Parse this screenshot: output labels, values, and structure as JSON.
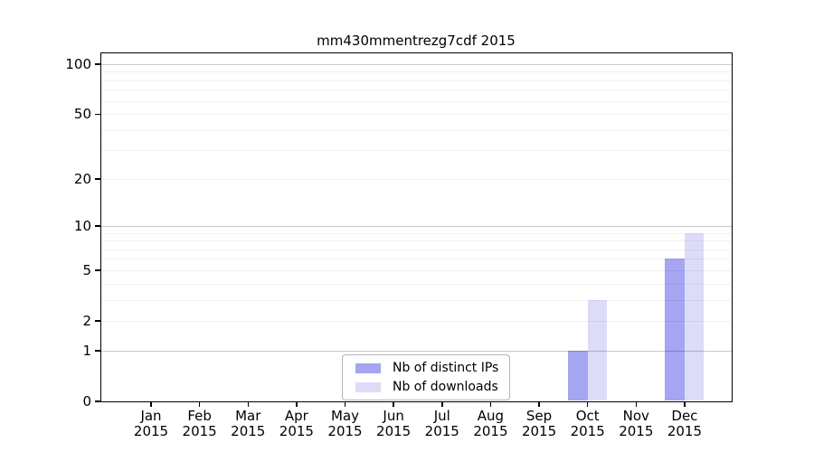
{
  "chart_data": {
    "type": "bar",
    "title": "mm430mmentrezg7cdf 2015",
    "year_label": "2015",
    "categories": [
      "Jan 2015",
      "Feb 2015",
      "Mar 2015",
      "Apr 2015",
      "May 2015",
      "Jun 2015",
      "Jul 2015",
      "Aug 2015",
      "Sep 2015",
      "Oct 2015",
      "Nov 2015",
      "Dec 2015"
    ],
    "months": [
      "Jan",
      "Feb",
      "Mar",
      "Apr",
      "May",
      "Jun",
      "Jul",
      "Aug",
      "Sep",
      "Oct",
      "Nov",
      "Dec"
    ],
    "series": [
      {
        "name": "Nb of distinct IPs",
        "color": "#a5a5f1",
        "values": [
          0,
          0,
          0,
          0,
          0,
          0,
          0,
          0,
          0,
          1,
          0,
          6
        ]
      },
      {
        "name": "Nb of downloads",
        "color": "#dcdcf9",
        "values": [
          0,
          0,
          0,
          0,
          0,
          0,
          0,
          0,
          0,
          3,
          0,
          9
        ]
      }
    ],
    "xlabel": "",
    "ylabel": "",
    "y_axis": {
      "scale": "log1p",
      "tick_values": [
        0,
        1,
        2,
        5,
        10,
        20,
        50,
        100
      ],
      "range_max": 116
    },
    "gridlines": {
      "on": true,
      "drawn_over_bars": true,
      "major_values": [
        1,
        10,
        100
      ],
      "minor_values": [
        2,
        3,
        4,
        5,
        6,
        7,
        8,
        9,
        20,
        30,
        40,
        50,
        60,
        70,
        80,
        90
      ]
    },
    "legend": {
      "position": "lower center",
      "entries": [
        "Nb of distinct IPs",
        "Nb of downloads"
      ]
    },
    "colors": {
      "bar_distinct_ips": "#a5a5f1",
      "bar_downloads": "#dcdcf9",
      "grid_major": "rgba(0,0,0,0.21)",
      "grid_minor": "rgba(0,0,0,0.055)",
      "frame": "#000000",
      "text": "#000000",
      "legend_border": "#b3b3b3",
      "background": "#ffffff"
    }
  }
}
